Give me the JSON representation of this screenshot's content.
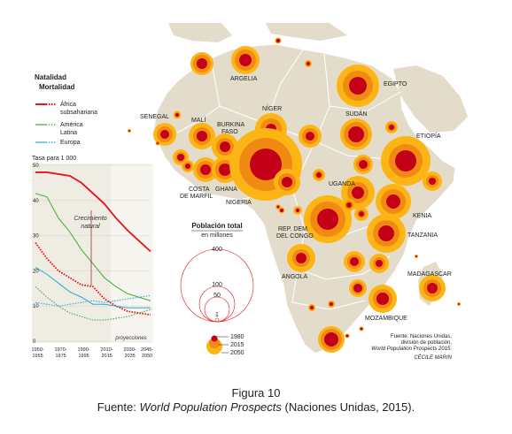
{
  "legend": {
    "natalidad": "Natalidad",
    "mortalidad": "Mortalidad",
    "series": [
      {
        "name_line1": "África",
        "name_line2": "subsahariana",
        "color": "#e8121a"
      },
      {
        "name_line1": "América",
        "name_line2": "Latina",
        "color": "#45a83a"
      },
      {
        "name_line1": "Europa",
        "name_line2": "",
        "color": "#2aa7dc"
      }
    ]
  },
  "chart": {
    "ylabel": "Tasa para 1 000",
    "yticks": [
      "0",
      "10",
      "20",
      "30",
      "40",
      "50"
    ],
    "xticks": [
      [
        "1950-",
        "1955"
      ],
      [
        "1970-",
        "1975"
      ],
      [
        "1990-",
        "1995"
      ],
      [
        "2010-",
        "2015"
      ],
      [
        "2030-",
        "2035"
      ],
      [
        "2045-",
        "2050"
      ]
    ],
    "annotation_line1": "Crecimiento",
    "annotation_line2": "natural",
    "projection_label": "proyecciones"
  },
  "chart_data": {
    "type": "line",
    "ylim": [
      0,
      50
    ],
    "x": [
      1950,
      1960,
      1970,
      1980,
      1990,
      2000,
      2010,
      2020,
      2030,
      2040,
      2050
    ],
    "series": [
      {
        "name": "África subsahariana",
        "kind": "Natalidad",
        "values": [
          48,
          48,
          47.5,
          47,
          45,
          42,
          39,
          35,
          31.5,
          28.5,
          25.5
        ]
      },
      {
        "name": "África subsahariana",
        "kind": "Mortalidad",
        "values": [
          28,
          23.5,
          20,
          18,
          16,
          15.5,
          12,
          10,
          8.5,
          8,
          7.5
        ]
      },
      {
        "name": "América Latina",
        "kind": "Natalidad",
        "values": [
          42,
          41,
          35,
          31,
          26,
          22,
          18,
          15.5,
          13.5,
          12.5,
          11.5
        ]
      },
      {
        "name": "América Latina",
        "kind": "Mortalidad",
        "values": [
          15.5,
          12.5,
          10,
          8,
          7,
          6,
          6,
          6.5,
          7,
          8,
          9
        ]
      },
      {
        "name": "Europa",
        "kind": "Natalidad",
        "values": [
          21,
          19,
          16.5,
          14,
          12.5,
          10.5,
          10.5,
          10,
          9.5,
          9.5,
          9.5
        ]
      },
      {
        "name": "Europa",
        "kind": "Mortalidad",
        "values": [
          11,
          10.5,
          10,
          10.5,
          11,
          11.5,
          11,
          11.5,
          12,
          12.5,
          13
        ]
      }
    ]
  },
  "map": {
    "countries": {
      "argelia": "ARGELIA",
      "egipto": "EGIPTO",
      "senegal": "SENEGAL",
      "mali": "MALÍ",
      "burkina_1": "BURKINA",
      "burkina_2": "FASO",
      "niger": "NÍGER",
      "sudan": "SUDÁN",
      "etiopia": "ETIOPÍA",
      "costa_1": "COSTA",
      "costa_2": "DE MARFIL",
      "ghana": "GHANA",
      "nigeria": "NIGERIA",
      "uganda": "UGANDA",
      "kenia": "KENIA",
      "rdc_1": "REP. DEM.",
      "rdc_2": "DEL CONGO",
      "tanzania": "TANZANIA",
      "angola": "ANGOLA",
      "madagascar": "MADAGASCAR",
      "mozambique": "MOZAMBIQUE"
    },
    "pop_title": "Población total",
    "pop_subtitle": "en millones",
    "pop_scale": [
      "400",
      "100",
      "50",
      "1"
    ],
    "year_legend": [
      "1980",
      "2015",
      "2050"
    ],
    "source": [
      "Fuente: Naciones Unidas,",
      "división de población,",
      "World Population Prospects 2015."
    ],
    "author": "CÉCILE MARIN",
    "colors": {
      "y1980": "#c40018",
      "y2015": "#f08a12",
      "y2050": "#fdb515",
      "land": "#e4dccb",
      "sea": "#ffffff"
    }
  },
  "caption": {
    "title": "Figura 10",
    "source_prefix": "Fuente: ",
    "source_italic": "World Population Prospects",
    "source_suffix": " (Naciones Unidas, 2015)."
  }
}
